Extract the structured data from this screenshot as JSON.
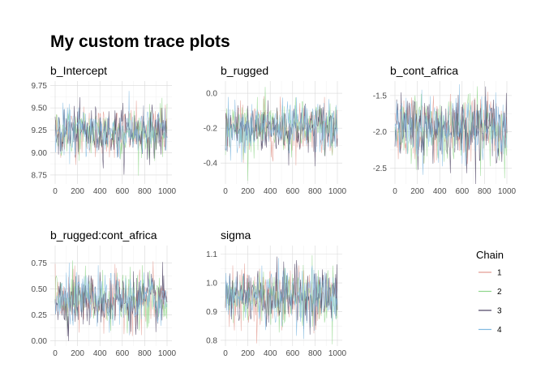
{
  "title": "My custom trace plots",
  "legend": {
    "title": "Chain",
    "position": "right",
    "items": [
      {
        "label": "1",
        "color": "#e39a8f"
      },
      {
        "label": "2",
        "color": "#8fd68a"
      },
      {
        "label": "3",
        "color": "#4a4060"
      },
      {
        "label": "4",
        "color": "#7fb8e0"
      }
    ]
  },
  "chart_data": [
    {
      "type": "line",
      "title": "b_Intercept",
      "xlim": [
        0,
        1000
      ],
      "x_ticks": [
        0,
        200,
        400,
        600,
        800,
        1000
      ],
      "ylim": [
        8.65,
        9.8
      ],
      "y_ticks": [
        8.75,
        9.0,
        9.25,
        9.5,
        9.75
      ],
      "y_tick_labels": [
        "8.75",
        "9.00",
        "9.25",
        "9.50",
        "9.75"
      ],
      "chain_center": 9.23,
      "chain_spread": 0.14,
      "grid": true,
      "series": [
        {
          "name": "1"
        },
        {
          "name": "2"
        },
        {
          "name": "3"
        },
        {
          "name": "4"
        }
      ]
    },
    {
      "type": "line",
      "title": "b_rugged",
      "xlim": [
        0,
        1000
      ],
      "x_ticks": [
        0,
        200,
        400,
        600,
        800,
        1000
      ],
      "ylim": [
        -0.52,
        0.07
      ],
      "y_ticks": [
        -0.4,
        -0.2,
        0.0
      ],
      "y_tick_labels": [
        "-0.4",
        "-0.2",
        "0.0"
      ],
      "chain_center": -0.2,
      "chain_spread": 0.075,
      "grid": true,
      "series": [
        {
          "name": "1"
        },
        {
          "name": "2"
        },
        {
          "name": "3"
        },
        {
          "name": "4"
        }
      ]
    },
    {
      "type": "line",
      "title": "b_cont_africa",
      "xlim": [
        0,
        1000
      ],
      "x_ticks": [
        0,
        200,
        400,
        600,
        800,
        1000
      ],
      "ylim": [
        -2.72,
        -1.3
      ],
      "y_ticks": [
        -2.5,
        -2.0,
        -1.5
      ],
      "y_tick_labels": [
        "-2.5",
        "-2.0",
        "-1.5"
      ],
      "chain_center": -1.95,
      "chain_spread": 0.22,
      "grid": true,
      "series": [
        {
          "name": "1"
        },
        {
          "name": "2"
        },
        {
          "name": "3"
        },
        {
          "name": "4"
        }
      ]
    },
    {
      "type": "line",
      "title": "b_rugged:cont_africa",
      "xlim": [
        0,
        1000
      ],
      "x_ticks": [
        0,
        200,
        400,
        600,
        800,
        1000
      ],
      "ylim": [
        -0.05,
        0.92
      ],
      "y_ticks": [
        0.0,
        0.25,
        0.5,
        0.75
      ],
      "y_tick_labels": [
        "0.00",
        "0.25",
        "0.50",
        "0.75"
      ],
      "chain_center": 0.39,
      "chain_spread": 0.13,
      "grid": true,
      "series": [
        {
          "name": "1"
        },
        {
          "name": "2"
        },
        {
          "name": "3"
        },
        {
          "name": "4"
        }
      ]
    },
    {
      "type": "line",
      "title": "sigma",
      "xlim": [
        0,
        1000
      ],
      "x_ticks": [
        0,
        200,
        400,
        600,
        800,
        1000
      ],
      "ylim": [
        0.78,
        1.13
      ],
      "y_ticks": [
        0.8,
        0.9,
        1.0,
        1.1
      ],
      "y_tick_labels": [
        "0.8",
        "0.9",
        "1.0",
        "1.1"
      ],
      "chain_center": 0.955,
      "chain_spread": 0.05,
      "grid": true,
      "series": [
        {
          "name": "1"
        },
        {
          "name": "2"
        },
        {
          "name": "3"
        },
        {
          "name": "4"
        }
      ]
    }
  ]
}
